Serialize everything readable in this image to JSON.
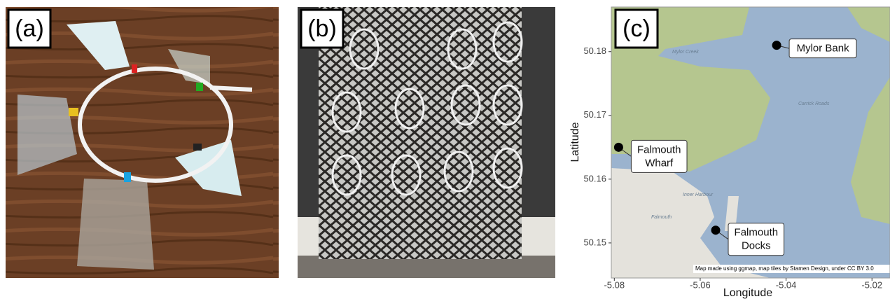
{
  "panels": [
    {
      "label": "(a)"
    },
    {
      "label": "(b)"
    },
    {
      "label": "(c)"
    }
  ],
  "map": {
    "xlabel": "Longitude",
    "ylabel": "Latitude",
    "xlim": [
      -5.0807,
      -5.0158
    ],
    "ylim": [
      50.1445,
      50.187
    ],
    "xticks": [
      -5.08,
      -5.06,
      -5.04,
      -5.02
    ],
    "yticks": [
      50.15,
      50.16,
      50.17,
      50.18
    ],
    "points": [
      {
        "label_lines": [
          "Mylor Bank"
        ],
        "lon": -5.0422,
        "lat": 50.181
      },
      {
        "label_lines": [
          "Falmouth",
          "Wharf"
        ],
        "lon": -5.079,
        "lat": 50.165
      },
      {
        "label_lines": [
          "Falmouth",
          "Docks"
        ],
        "lon": -5.0564,
        "lat": 50.152
      }
    ],
    "place_names": [
      "Mylor Creek",
      "Carrick Roads",
      "Inner Harbour",
      "Falmouth"
    ],
    "attribution": "Map made using ggmap, map tiles by Stamen Design, under CC BY 3.0"
  }
}
